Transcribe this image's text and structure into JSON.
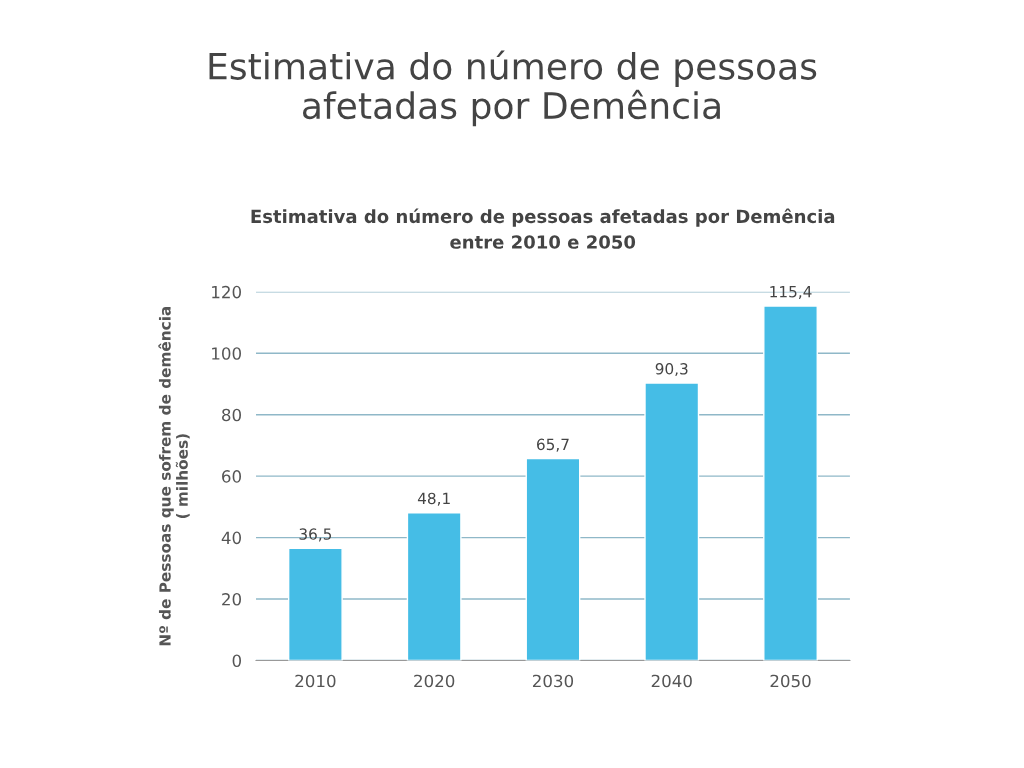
{
  "chart_data": {
    "type": "bar",
    "title": "Estimativa do número de pessoas\nafetadas por Demência",
    "subtitle": "Estimativa do número de pessoas afetadas por Demência\nentre 2010 e 2050",
    "ylabel": "Nº de Pessoas que sofrem de demência\n( milhões)",
    "categories": [
      "2010",
      "2020",
      "2030",
      "2040",
      "2050"
    ],
    "values": [
      36.5,
      48.1,
      65.7,
      90.3,
      115.4
    ],
    "value_labels": [
      "36,5",
      "48,1",
      "65,7",
      "90,3",
      "115,4"
    ],
    "color": "#45bde6",
    "ylim": [
      0,
      120
    ],
    "yticks": [
      0,
      20,
      40,
      60,
      80,
      100,
      120
    ],
    "grid": "y",
    "legend": false
  }
}
